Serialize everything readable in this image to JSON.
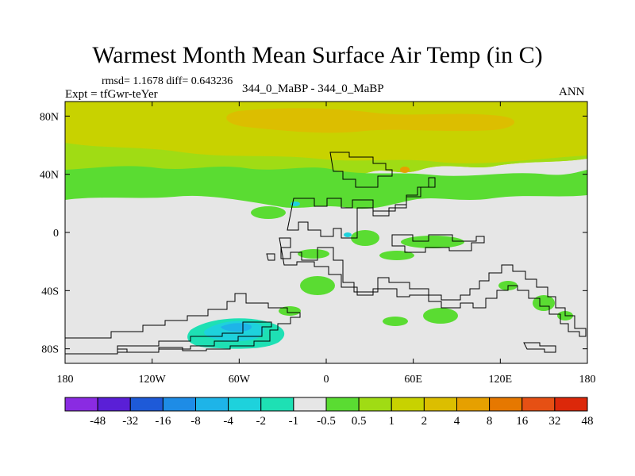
{
  "chart_data": {
    "type": "heatmap",
    "title": "Warmest Month Mean Surface Air Temp (in C)",
    "stats_line": "rmsd= 1.1678 diff= 0.643236",
    "experiment_line": "Expt = tfGwr-teYer",
    "case_line": "344_0_MaBP - 344_0_MaBP",
    "season": "ANN",
    "x_ticks": [
      {
        "value": -180,
        "label": "180"
      },
      {
        "value": -120,
        "label": "120W"
      },
      {
        "value": -60,
        "label": "60W"
      },
      {
        "value": 0,
        "label": "0"
      },
      {
        "value": 60,
        "label": "60E"
      },
      {
        "value": 120,
        "label": "120E"
      },
      {
        "value": 180,
        "label": "180"
      }
    ],
    "y_ticks": [
      {
        "value": 80,
        "label": "80N"
      },
      {
        "value": 40,
        "label": "40N"
      },
      {
        "value": 0,
        "label": "0"
      },
      {
        "value": -40,
        "label": "40S"
      },
      {
        "value": -80,
        "label": "80S"
      }
    ],
    "xlim": [
      -180,
      180
    ],
    "ylim": [
      -90,
      90
    ],
    "colorbar": {
      "colors": [
        "#8a2be2",
        "#5a1fd6",
        "#1e5ad8",
        "#1e8ce6",
        "#1eb4e8",
        "#1ed2dc",
        "#1ee0b4",
        "#e6e6e6",
        "#5adc32",
        "#a0dc14",
        "#c8d200",
        "#dcbe00",
        "#e6a000",
        "#e67800",
        "#e65014",
        "#dc280a"
      ],
      "labels": [
        "-48",
        "-32",
        "-16",
        "-8",
        "-4",
        "-2",
        "-1",
        "-0.5",
        "0.5",
        "1",
        "2",
        "4",
        "8",
        "16",
        "32",
        "48"
      ]
    }
  }
}
